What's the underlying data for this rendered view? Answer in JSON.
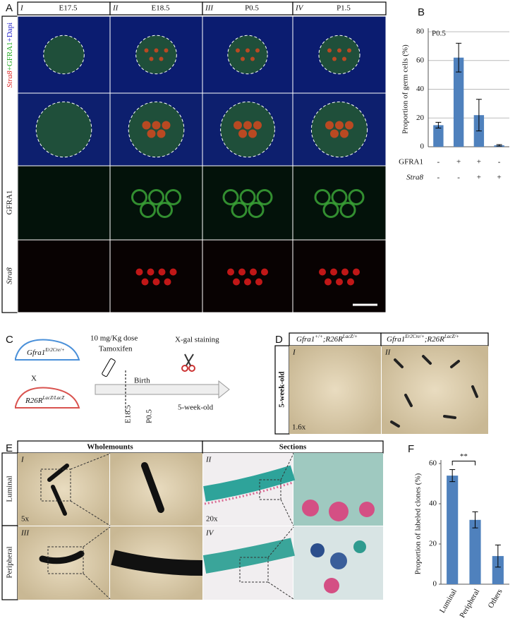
{
  "panels": {
    "A": {
      "label": "A",
      "columns": [
        {
          "numeral": "I",
          "stage": "E17.5"
        },
        {
          "numeral": "II",
          "stage": "E18.5"
        },
        {
          "numeral": "III",
          "stage": "P0.5"
        },
        {
          "numeral": "IV",
          "stage": "P1.5"
        }
      ],
      "rows": [
        {
          "label_parts": [
            "Stra8",
            "+GFRA1",
            "+Dapi"
          ]
        },
        {
          "label": "GFRA1"
        },
        {
          "label": "Stra8"
        }
      ]
    },
    "C": {
      "label": "C",
      "mouse1": {
        "name": "Gfra1",
        "sup": "Er2Cre/+"
      },
      "cross": "X",
      "mouse2": {
        "name": "R26R",
        "sup": "LacZ/LacZ"
      },
      "dose": "10 mg/Kg dose",
      "drug": "Tamoxifen",
      "stain": "X-gal staining",
      "birth": "Birth",
      "timepoints": [
        "E18.5",
        "P0.5"
      ],
      "end": "5-week-old"
    },
    "D": {
      "label": "D",
      "headers": [
        {
          "name": "Gfra1",
          "sup": "+/+",
          "rest": ";R26R",
          "sup2": "LacZ/+"
        },
        {
          "name": "Gfra1",
          "sup": "Er2Cre/+",
          "rest": ";R26R",
          "sup2": "LacZ/+"
        }
      ],
      "numerals": [
        "I",
        "II"
      ],
      "age": "5-week-old",
      "magnification": "1.6x"
    },
    "E": {
      "label": "E",
      "headers": [
        "Wholemounts",
        "Sections"
      ],
      "rows": [
        "Luminal",
        "Peripheral"
      ],
      "numerals": [
        "I",
        "II",
        "III",
        "IV"
      ],
      "magnifications": [
        "5x",
        "20x"
      ]
    }
  },
  "chart_data": [
    {
      "type": "bar",
      "panel": "B",
      "annotation": "P0.5",
      "y_label": "Proportion of germ cells (%)",
      "values": [
        15,
        62,
        22,
        1
      ],
      "errors": [
        2,
        10,
        11,
        0.5
      ],
      "color": "#4f81bd",
      "ylim": [
        0,
        80
      ],
      "yticks": [
        0,
        20,
        40,
        60,
        80
      ],
      "grid": true,
      "conditions": [
        {
          "name": "GFRA1",
          "values": [
            "-",
            "+",
            "+",
            "-"
          ]
        },
        {
          "name": "Stra8",
          "values": [
            "-",
            "-",
            "+",
            "+"
          ]
        }
      ]
    },
    {
      "type": "bar",
      "panel": "F",
      "y_label": "Proportion of labeled clones (%)",
      "categories": [
        "Luminal",
        "Peripheral",
        "Others"
      ],
      "values": [
        54,
        32,
        14
      ],
      "errors": [
        3,
        4,
        5.5
      ],
      "color": "#4f81bd",
      "ylim": [
        0,
        60
      ],
      "yticks": [
        0,
        20,
        40,
        60
      ],
      "grid": false,
      "significance": "**"
    }
  ]
}
